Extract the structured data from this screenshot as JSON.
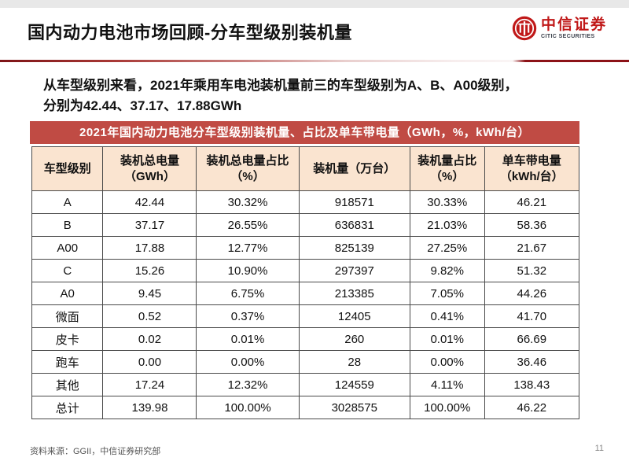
{
  "page": {
    "title": "国内动力电池市场回顾-分车型级别装机量",
    "page_number": "11",
    "source_note": "资料来源：GGII，中信证券研究部"
  },
  "logo": {
    "name_cn": "中信证券",
    "name_en": "CITIC SECURITIES"
  },
  "summary": {
    "line1": "从车型级别来看，2021年乘用车电池装机量前三的车型级别为A、B、A00级别，",
    "line2": "分别为42.44、37.17、17.88GWh"
  },
  "table": {
    "caption": "2021年国内动力电池分车型级别装机量、占比及单车带电量（GWh，%，kWh/台）",
    "columns": [
      {
        "line1": "车型级别",
        "line2": ""
      },
      {
        "line1": "装机总电量",
        "line2": "（GWh）"
      },
      {
        "line1": "装机总电量占比",
        "line2": "（%）"
      },
      {
        "line1": "装机量（万台）",
        "line2": ""
      },
      {
        "line1": "装机量占比",
        "line2": "（%）"
      },
      {
        "line1": "单车带电量",
        "line2": "（kWh/台）"
      }
    ],
    "rows": [
      [
        "A",
        "42.44",
        "30.32%",
        "918571",
        "30.33%",
        "46.21"
      ],
      [
        "B",
        "37.17",
        "26.55%",
        "636831",
        "21.03%",
        "58.36"
      ],
      [
        "A00",
        "17.88",
        "12.77%",
        "825139",
        "27.25%",
        "21.67"
      ],
      [
        "C",
        "15.26",
        "10.90%",
        "297397",
        "9.82%",
        "51.32"
      ],
      [
        "A0",
        "9.45",
        "6.75%",
        "213385",
        "7.05%",
        "44.26"
      ],
      [
        "微面",
        "0.52",
        "0.37%",
        "12405",
        "0.41%",
        "41.70"
      ],
      [
        "皮卡",
        "0.02",
        "0.01%",
        "260",
        "0.01%",
        "66.69"
      ],
      [
        "跑车",
        "0.00",
        "0.00%",
        "28",
        "0.00%",
        "36.46"
      ],
      [
        "其他",
        "17.24",
        "12.32%",
        "124559",
        "4.11%",
        "138.43"
      ],
      [
        "总计",
        "139.98",
        "100.00%",
        "3028575",
        "100.00%",
        "46.22"
      ]
    ],
    "colors": {
      "caption_bg": "#C04B44",
      "header_bg": "#FAE4D0",
      "border": "#4A4A4A"
    }
  },
  "colors": {
    "brand_red": "#C01818",
    "divider_left": "#7D1316",
    "divider_right": "#8C1217"
  }
}
